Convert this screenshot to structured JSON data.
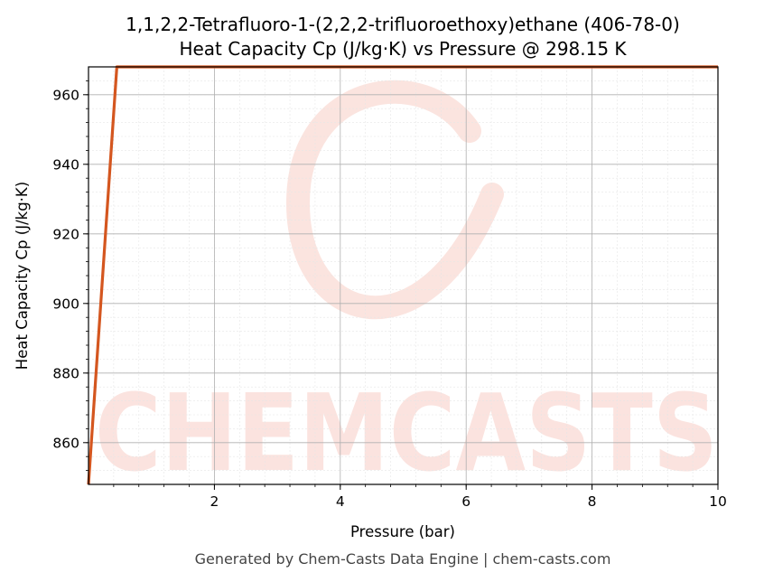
{
  "chart_data": {
    "type": "line",
    "title": "1,1,2,2-Tetrafluoro-1-(2,2,2-trifluoroethoxy)ethane (406-78-0)",
    "subtitle": "Heat Capacity Cp (J/kg·K) vs Pressure @ 298.15 K",
    "xlabel": "Pressure (bar)",
    "ylabel": "Heat Capacity Cp (J/kg·K)",
    "xlim": [
      0,
      10
    ],
    "ylim": [
      848,
      968
    ],
    "xticks": [
      2,
      4,
      6,
      8,
      10
    ],
    "yticks": [
      860,
      880,
      900,
      920,
      940,
      960
    ],
    "grid": true,
    "series": [
      {
        "color": "#d4561f",
        "x": [
          0.0,
          0.45,
          0.5,
          10.0
        ],
        "y": [
          848.0,
          968.0,
          968.0,
          968.0
        ]
      }
    ]
  },
  "watermark": "CHEMCASTS",
  "footer": "Generated by Chem-Casts Data Engine | chem-casts.com"
}
